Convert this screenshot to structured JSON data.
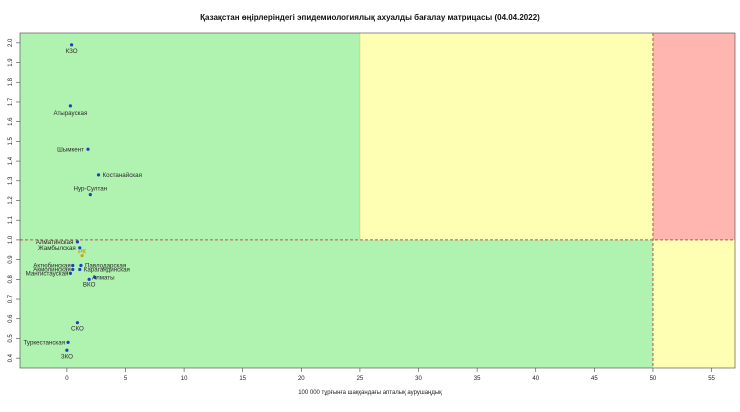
{
  "chart_data": {
    "type": "scatter",
    "title": "Қазақстан өңірлеріндегі эпидемиологиялық ахуалды бағалау матрицасы  (04.04.2022)",
    "xlabel": "100 000 тұрғынға шаққандағы апталық аурушаңдық",
    "ylabel": "",
    "xlim": [
      -4,
      57
    ],
    "ylim": [
      0.35,
      2.05
    ],
    "xticks": [
      0,
      5,
      10,
      15,
      20,
      25,
      30,
      35,
      40,
      45,
      50,
      55
    ],
    "yticks": [
      0.4,
      0.5,
      0.6,
      0.7,
      0.8,
      0.9,
      1.0,
      1.1,
      1.2,
      1.3,
      1.4,
      1.5,
      1.6,
      1.7,
      1.8,
      1.9,
      2.0
    ],
    "grid": false,
    "zones": [
      {
        "x": [
          -4,
          25
        ],
        "y": [
          1.0,
          2.05
        ],
        "color": "#b0f2b0"
      },
      {
        "x": [
          25,
          50
        ],
        "y": [
          1.0,
          2.05
        ],
        "color": "#ffffb3"
      },
      {
        "x": [
          50,
          57
        ],
        "y": [
          1.0,
          2.05
        ],
        "color": "#ffb6b0"
      },
      {
        "x": [
          -4,
          50
        ],
        "y": [
          0.35,
          1.0
        ],
        "color": "#b0f2b0"
      },
      {
        "x": [
          50,
          57
        ],
        "y": [
          0.35,
          1.0
        ],
        "color": "#ffffb3"
      }
    ],
    "threshold_lines": {
      "x": 50,
      "y": 1.0,
      "color": "#c0504d"
    },
    "point_color": "#1e3fbf",
    "highlight_color": "#d4a000",
    "points": [
      {
        "label": "КЗО",
        "x": 0.4,
        "y": 1.99
      },
      {
        "label": "Атырауская",
        "x": 0.3,
        "y": 1.68
      },
      {
        "label": "Шымкент",
        "x": 1.8,
        "y": 1.46
      },
      {
        "label": "Костанайская",
        "x": 2.7,
        "y": 1.33
      },
      {
        "label": "Нур-Султан",
        "x": 2.0,
        "y": 1.23
      },
      {
        "label": "Алматинская",
        "x": 0.9,
        "y": 0.99
      },
      {
        "label": "Жамбылская",
        "x": 1.1,
        "y": 0.96
      },
      {
        "label": "РК",
        "x": 1.3,
        "y": 0.92,
        "highlight": true
      },
      {
        "label": "Павлодарская",
        "x": 1.2,
        "y": 0.87
      },
      {
        "label": "Актюбинская",
        "x": 0.5,
        "y": 0.87
      },
      {
        "label": "Карагандинская",
        "x": 1.1,
        "y": 0.85
      },
      {
        "label": "Акмолинская",
        "x": 0.5,
        "y": 0.85
      },
      {
        "label": "Алматы",
        "x": 2.4,
        "y": 0.81
      },
      {
        "label": "Мангистауская",
        "x": 0.3,
        "y": 0.83
      },
      {
        "label": "ВКО",
        "x": 1.9,
        "y": 0.8
      },
      {
        "label": "СКО",
        "x": 0.9,
        "y": 0.58
      },
      {
        "label": "Туркестанская",
        "x": 0.1,
        "y": 0.48
      },
      {
        "label": "ЗКО",
        "x": 0.0,
        "y": 0.44
      }
    ]
  }
}
